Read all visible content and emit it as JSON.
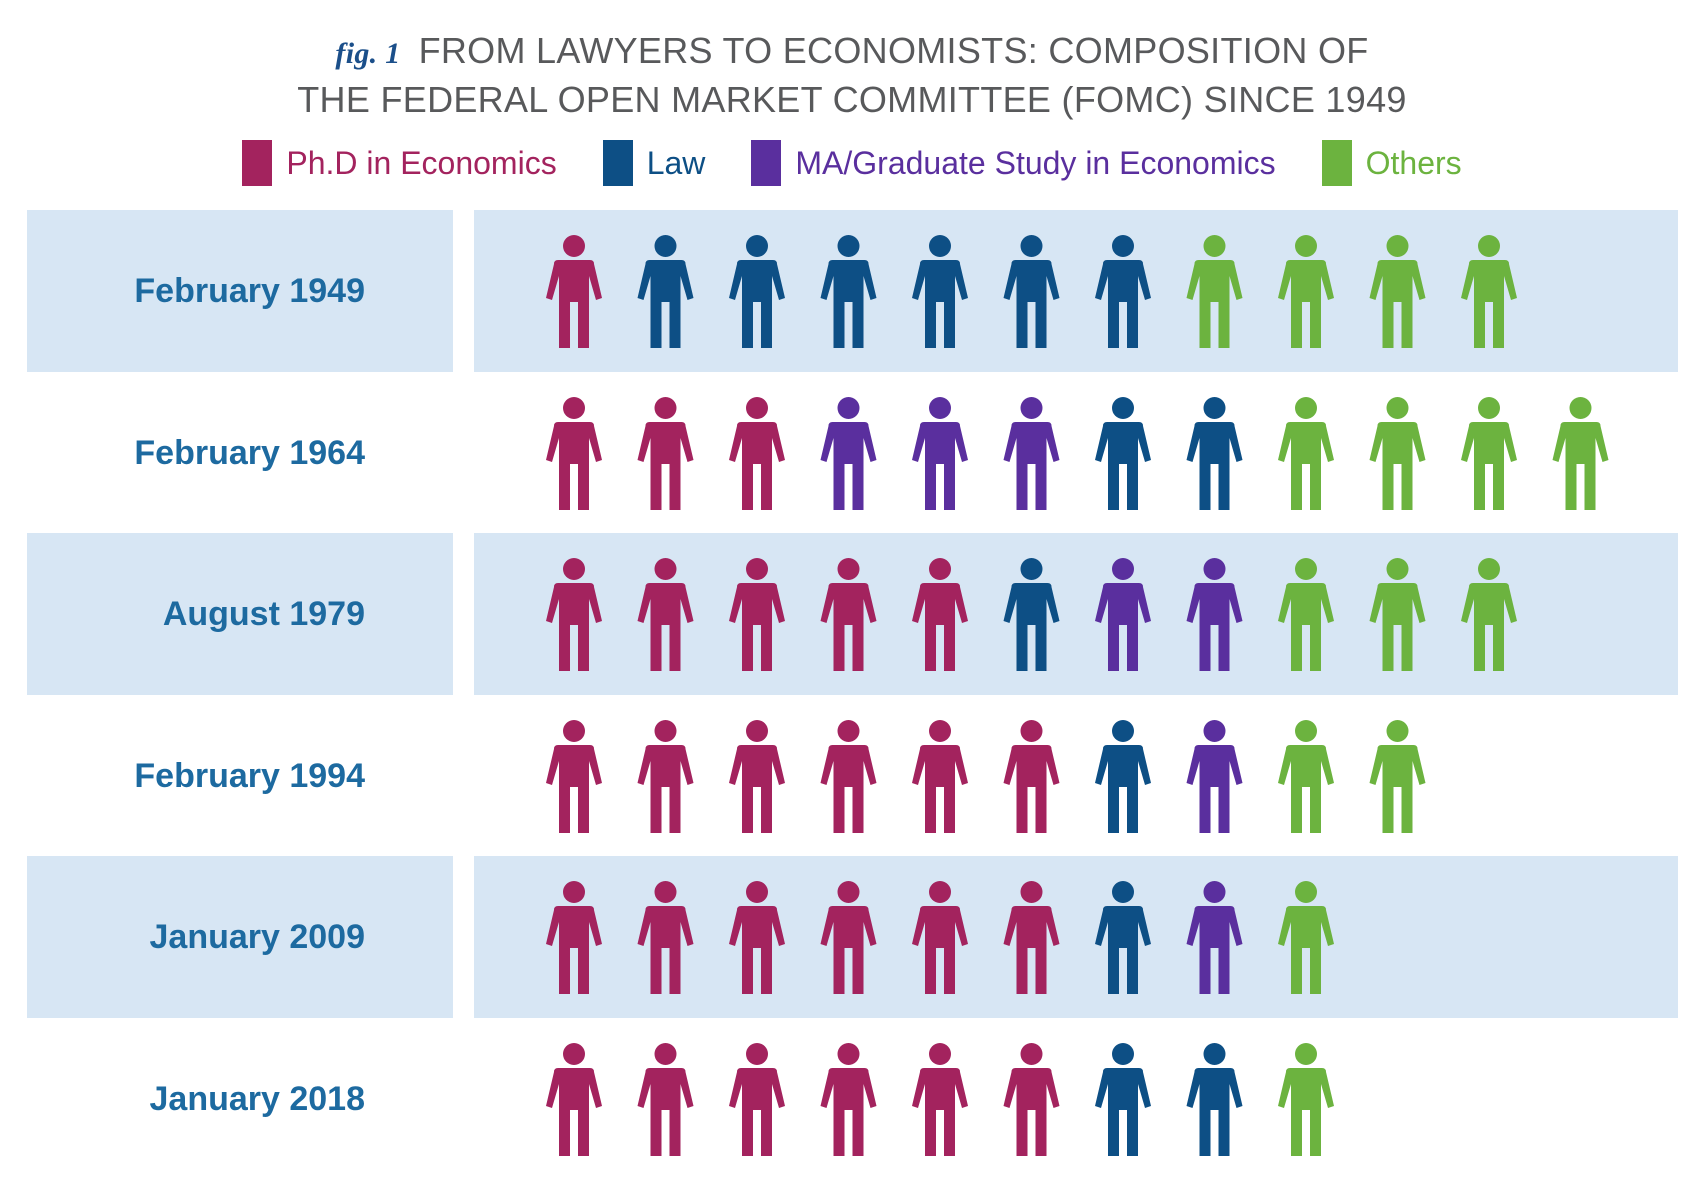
{
  "title": {
    "fig_label": "fig. 1",
    "line1": "FROM LAWYERS TO ECONOMISTS: COMPOSITION OF",
    "line2": "THE FEDERAL OPEN MARKET COMMITTEE (FOMC) SINCE 1949"
  },
  "legend": [
    {
      "key": "phd",
      "label": "Ph.D in Economics",
      "color": "#a3235e"
    },
    {
      "key": "law",
      "label": "Law",
      "color": "#0d4f85"
    },
    {
      "key": "ma",
      "label": "MA/Graduate Study in Economics",
      "color": "#5a2f9e"
    },
    {
      "key": "other",
      "label": "Others",
      "color": "#6cb33f"
    }
  ],
  "chart_data": {
    "type": "pictograph",
    "title": "FROM LAWYERS TO ECONOMISTS: COMPOSITION OF THE FEDERAL OPEN MARKET COMMITTEE (FOMC) SINCE 1949",
    "unit": "one figure = one FOMC member",
    "categories": [
      "Ph.D in Economics",
      "Law",
      "MA/Graduate Study in Economics",
      "Others"
    ],
    "rows": [
      {
        "label": "February 1949",
        "shaded": true,
        "phd": 1,
        "law": 6,
        "ma": 0,
        "other": 4
      },
      {
        "label": "February 1964",
        "shaded": false,
        "phd": 3,
        "law": 2,
        "ma": 3,
        "other": 4
      },
      {
        "label": "August 1979",
        "shaded": true,
        "phd": 5,
        "law": 1,
        "ma": 2,
        "other": 3
      },
      {
        "label": "February 1994",
        "shaded": false,
        "phd": 6,
        "law": 1,
        "ma": 1,
        "other": 2
      },
      {
        "label": "January 2009",
        "shaded": true,
        "phd": 6,
        "law": 1,
        "ma": 1,
        "other": 1
      },
      {
        "label": "January 2018",
        "shaded": false,
        "phd": 6,
        "law": 2,
        "ma": 0,
        "other": 1
      }
    ],
    "sequence": [
      [
        "phd",
        "law",
        "law",
        "law",
        "law",
        "law",
        "law",
        "other",
        "other",
        "other",
        "other"
      ],
      [
        "phd",
        "phd",
        "phd",
        "ma",
        "ma",
        "ma",
        "law",
        "law",
        "other",
        "other",
        "other",
        "other"
      ],
      [
        "phd",
        "phd",
        "phd",
        "phd",
        "phd",
        "law",
        "ma",
        "ma",
        "other",
        "other",
        "other"
      ],
      [
        "phd",
        "phd",
        "phd",
        "phd",
        "phd",
        "phd",
        "law",
        "ma",
        "other",
        "other"
      ],
      [
        "phd",
        "phd",
        "phd",
        "phd",
        "phd",
        "phd",
        "law",
        "ma",
        "other"
      ],
      [
        "phd",
        "phd",
        "phd",
        "phd",
        "phd",
        "phd",
        "law",
        "law",
        "other"
      ]
    ]
  }
}
